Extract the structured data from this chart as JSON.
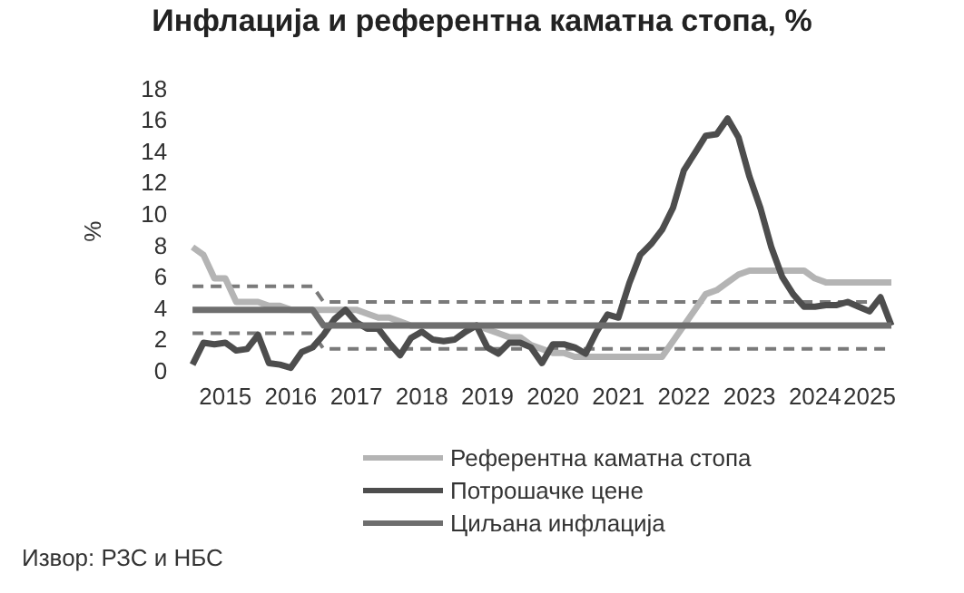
{
  "chart_data": {
    "type": "line",
    "title": "Инфлација и референтна каматна стопа, %",
    "ylabel": "%",
    "categories": [
      null,
      null,
      null,
      "2015",
      null,
      null,
      null,
      null,
      null,
      "2016",
      null,
      null,
      null,
      null,
      null,
      "2017",
      null,
      null,
      null,
      null,
      null,
      "2018",
      null,
      null,
      null,
      null,
      null,
      "2019",
      null,
      null,
      null,
      null,
      null,
      "2020",
      null,
      null,
      null,
      null,
      null,
      "2021",
      null,
      null,
      null,
      null,
      null,
      "2022",
      null,
      null,
      null,
      null,
      null,
      "2023",
      null,
      null,
      null,
      null,
      null,
      "2024",
      null,
      null,
      null,
      null,
      "2025",
      null,
      null
    ],
    "series": [
      {
        "name": "Референтна каматна стопа",
        "color": "#b4b4b4",
        "line_style": "solid",
        "values": [
          8.0,
          7.5,
          6.0,
          6.0,
          4.5,
          4.5,
          4.5,
          4.25,
          4.25,
          4.0,
          4.0,
          4.0,
          4.0,
          4.0,
          4.0,
          4.0,
          3.75,
          3.5,
          3.5,
          3.25,
          3.0,
          3.0,
          3.0,
          3.0,
          3.0,
          3.0,
          3.0,
          2.75,
          2.5,
          2.25,
          2.25,
          1.75,
          1.5,
          1.25,
          1.25,
          1.0,
          1.0,
          1.0,
          1.0,
          1.0,
          1.0,
          1.0,
          1.0,
          1.0,
          2.0,
          3.0,
          4.0,
          5.0,
          5.25,
          5.75,
          6.25,
          6.5,
          6.5,
          6.5,
          6.5,
          6.5,
          6.5,
          6.0,
          5.75,
          5.75,
          5.75,
          5.75,
          5.75,
          5.75,
          5.75
        ]
      },
      {
        "name": "Потрошачке цене",
        "color": "#4d4d4d",
        "line_style": "solid",
        "values": [
          0.5,
          1.9,
          1.8,
          1.9,
          1.4,
          1.5,
          2.4,
          0.6,
          0.5,
          0.3,
          1.3,
          1.6,
          2.4,
          3.4,
          4.0,
          3.2,
          2.8,
          2.8,
          1.9,
          1.1,
          2.2,
          2.6,
          2.1,
          2.0,
          2.1,
          2.6,
          3.0,
          1.6,
          1.2,
          1.9,
          1.9,
          1.6,
          0.6,
          1.8,
          1.8,
          1.6,
          1.2,
          2.6,
          3.7,
          3.5,
          5.7,
          7.5,
          8.2,
          9.1,
          10.5,
          12.9,
          14.0,
          15.1,
          15.2,
          16.2,
          15.0,
          12.5,
          10.5,
          8.0,
          6.1,
          5.0,
          4.2,
          4.2,
          4.3,
          4.3,
          4.5,
          4.2,
          3.9,
          4.8,
          3.0
        ]
      },
      {
        "name": "Циљана инфлација",
        "color": "#6e6e6e",
        "line_style": "solid",
        "values": [
          4,
          4,
          4,
          4,
          4,
          4,
          4,
          4,
          4,
          4,
          4,
          4,
          3,
          3,
          3,
          3,
          3,
          3,
          3,
          3,
          3,
          3,
          3,
          3,
          3,
          3,
          3,
          3,
          3,
          3,
          3,
          3,
          3,
          3,
          3,
          3,
          3,
          3,
          3,
          3,
          3,
          3,
          3,
          3,
          3,
          3,
          3,
          3,
          3,
          3,
          3,
          3,
          3,
          3,
          3,
          3,
          3,
          3,
          3,
          3,
          3,
          3,
          3,
          3,
          3
        ]
      },
      {
        "color": "#7a7a7a",
        "line_style": "dashed",
        "values": [
          5.5,
          5.5,
          5.5,
          5.5,
          5.5,
          5.5,
          5.5,
          5.5,
          5.5,
          5.5,
          5.5,
          5.5,
          4.5,
          4.5,
          4.5,
          4.5,
          4.5,
          4.5,
          4.5,
          4.5,
          4.5,
          4.5,
          4.5,
          4.5,
          4.5,
          4.5,
          4.5,
          4.5,
          4.5,
          4.5,
          4.5,
          4.5,
          4.5,
          4.5,
          4.5,
          4.5,
          4.5,
          4.5,
          4.5,
          4.5,
          4.5,
          4.5,
          4.5,
          4.5,
          4.5,
          4.5,
          4.5,
          4.5,
          4.5,
          4.5,
          4.5,
          4.5,
          4.5,
          4.5,
          4.5,
          4.5,
          4.5,
          4.5,
          4.5,
          4.5,
          4.5,
          4.5,
          4.5,
          4.5,
          4.5
        ]
      },
      {
        "color": "#7a7a7a",
        "line_style": "dashed",
        "values": [
          2.5,
          2.5,
          2.5,
          2.5,
          2.5,
          2.5,
          2.5,
          2.5,
          2.5,
          2.5,
          2.5,
          2.5,
          1.5,
          1.5,
          1.5,
          1.5,
          1.5,
          1.5,
          1.5,
          1.5,
          1.5,
          1.5,
          1.5,
          1.5,
          1.5,
          1.5,
          1.5,
          1.5,
          1.5,
          1.5,
          1.5,
          1.5,
          1.5,
          1.5,
          1.5,
          1.5,
          1.5,
          1.5,
          1.5,
          1.5,
          1.5,
          1.5,
          1.5,
          1.5,
          1.5,
          1.5,
          1.5,
          1.5,
          1.5,
          1.5,
          1.5,
          1.5,
          1.5,
          1.5,
          1.5,
          1.5,
          1.5,
          1.5,
          1.5,
          1.5,
          1.5,
          1.5,
          1.5,
          1.5,
          1.5
        ]
      }
    ],
    "ylim": [
      0,
      18
    ],
    "yticks": [
      0,
      2,
      4,
      6,
      8,
      10,
      12,
      14,
      16,
      18
    ],
    "grid": false,
    "legend": "bottom",
    "annotations": [
      "Извор: РЗС и НБС"
    ]
  }
}
